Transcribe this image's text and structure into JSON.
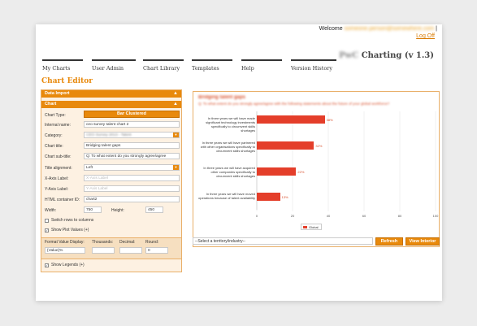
{
  "header": {
    "welcome_label": "Welcome",
    "user_email": "someone.person@somewhere.com",
    "welcome_suffix": "|",
    "logoff_label": "Log Off",
    "app_name_blurred": "PwC",
    "app_name": "Charting (v 1.3)"
  },
  "nav": [
    {
      "label": "My Charts"
    },
    {
      "label": "User Admin"
    },
    {
      "label": "Chart Library"
    },
    {
      "label": "Templates"
    },
    {
      "label": "Help"
    },
    {
      "label": "Version History"
    }
  ],
  "page_title": "Chart Editor",
  "panel": {
    "data_import_label": "Data Import",
    "chart_section_label": "Chart",
    "toggle_symbol": "▲",
    "chart_type_label": "Chart Type:",
    "chart_type_value": "Bar Clustered",
    "internal_name_label": "Internal name:",
    "internal_name_value": "ceo survey talent chart 2",
    "category_label": "Category:",
    "category_value": "CEO Survey 2013 - Talent",
    "chart_title_label": "Chart title:",
    "chart_title_value": "Bridging talent gaps",
    "chart_subtitle_label": "Chart sub-title:",
    "chart_subtitle_value": "Q: To what extent do you strongly agree/agree",
    "title_alignment_label": "Title alignment:",
    "title_alignment_value": "Left",
    "x_axis_label": "X-Axis Label:",
    "x_axis_placeholder": "X-Axis Label",
    "y_axis_label": "Y-Axis Label:",
    "y_axis_placeholder": "Y-Axis Label",
    "html_container_label": "HTML container ID:",
    "html_container_value": "chart2",
    "width_label": "Width:",
    "width_value": "750",
    "height_label": "Height:",
    "height_value": "450",
    "switch_rows_label": "Switch rows to columns",
    "show_plot_values_label": "Show Plot Values (+)",
    "format_value_display_label": "Format Value Display:",
    "format_value_display_value": "{Value}%",
    "thousands_label": "Thousands:",
    "decimal_label": "Decimal:",
    "round_label": "Round:",
    "round_value": "0",
    "show_legends_label": "Show Legends (+)"
  },
  "chart_data": {
    "type": "bar",
    "orientation": "horizontal",
    "title": "Bridging talent gaps",
    "subtitle": "Q: To what extent do you strongly agree/agree with the following statements about the future of your global workforce?",
    "categories": [
      "In three years we will have made significant technology investments specifically to circumvent skills shortages",
      "In three years we will have partnered with other organisations specifically to circumvent skills shortages",
      "In three years we will have acquired other companies specifically to circumvent skills shortages",
      "In three years we will have moved operations because of talent availability"
    ],
    "series": [
      {
        "name": "Global",
        "values": [
          38,
          32,
          22,
          13
        ]
      }
    ],
    "value_labels": [
      "38%",
      "32%",
      "22%",
      "13%"
    ],
    "xlim": [
      0,
      100
    ],
    "x_ticks": [
      0,
      20,
      40,
      60,
      80,
      100
    ],
    "legend_position": "bottom",
    "color": "#e43e2a"
  },
  "footer": {
    "territory_placeholder": "--Select a territory/industry--",
    "refresh_label": "Refresh",
    "view_interior_label": "View Interior"
  }
}
